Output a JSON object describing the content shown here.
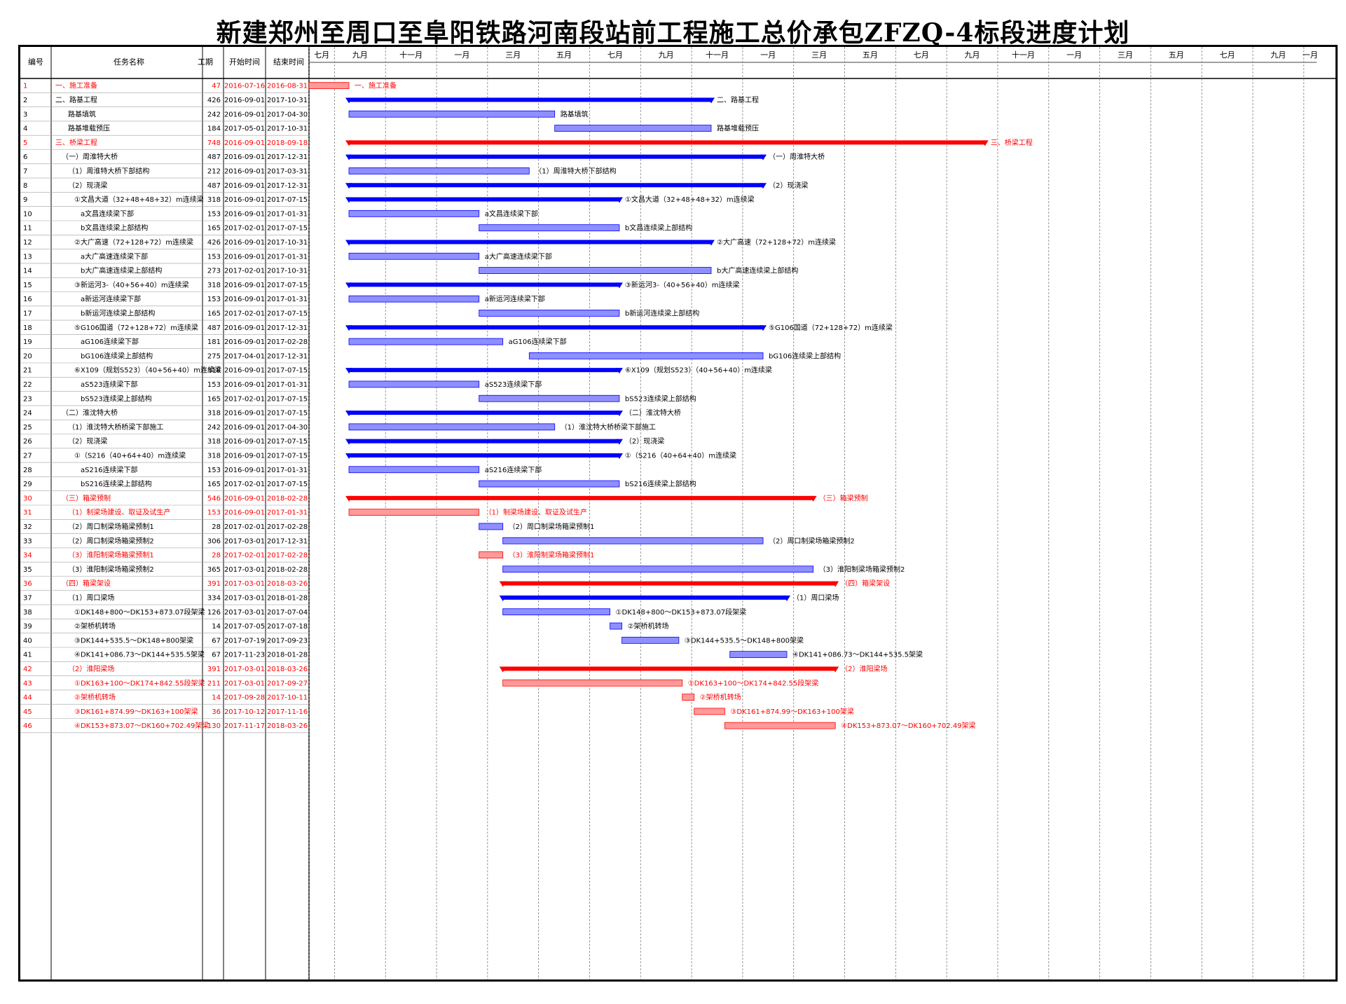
{
  "title": "新建郑州至周口至阜阳铁路河南段站前工程施工总价承包ZFZQ-4标段进度计划",
  "table_headers": {
    "id": "编号",
    "name": "任务名称",
    "duration": "工期",
    "start": "开始时间",
    "end": "结束时间"
  },
  "timeline": {
    "start": "2016-07-16",
    "end": "2019-10-14",
    "months": [
      {
        "label": "七月",
        "start": "2016-07-16",
        "end": "2016-08-15"
      },
      {
        "label": "九月",
        "start": "2016-08-15",
        "end": "2016-10-14"
      },
      {
        "label": "十一月",
        "start": "2016-10-14",
        "end": "2016-12-13"
      },
      {
        "label": "一月",
        "start": "2016-12-13",
        "end": "2017-02-11"
      },
      {
        "label": "三月",
        "start": "2017-02-11",
        "end": "2017-04-12"
      },
      {
        "label": "五月",
        "start": "2017-04-12",
        "end": "2017-06-11"
      },
      {
        "label": "七月",
        "start": "2017-06-11",
        "end": "2017-08-10"
      },
      {
        "label": "九月",
        "start": "2017-08-10",
        "end": "2017-10-09"
      },
      {
        "label": "十一月",
        "start": "2017-10-09",
        "end": "2017-12-08"
      },
      {
        "label": "一月",
        "start": "2017-12-08",
        "end": "2018-02-06"
      },
      {
        "label": "三月",
        "start": "2018-02-06",
        "end": "2018-04-07"
      },
      {
        "label": "五月",
        "start": "2018-04-07",
        "end": "2018-06-06"
      },
      {
        "label": "七月",
        "start": "2018-06-06",
        "end": "2018-08-05"
      },
      {
        "label": "九月",
        "start": "2018-08-05",
        "end": "2018-10-04"
      },
      {
        "label": "十一月",
        "start": "2018-10-04",
        "end": "2018-12-03"
      },
      {
        "label": "一月",
        "start": "2018-12-03",
        "end": "2019-02-01"
      },
      {
        "label": "三月",
        "start": "2019-02-01",
        "end": "2019-04-02"
      },
      {
        "label": "五月",
        "start": "2019-04-02",
        "end": "2019-06-01"
      },
      {
        "label": "七月",
        "start": "2019-06-01",
        "end": "2019-07-31"
      },
      {
        "label": "九月",
        "start": "2019-07-31",
        "end": "2019-09-29"
      },
      {
        "label": "一月",
        "start": "2019-09-29",
        "end": "2019-10-14"
      }
    ]
  },
  "chart_data": {
    "type": "gantt",
    "title": "新建郑州至周口至阜阳铁路河南段站前工程施工总价承包ZFZQ-4标段进度计划",
    "x_range": [
      "2016-07-16",
      "2019-10-14"
    ],
    "tasks": [
      {
        "id": "1",
        "name": "一、施工准备",
        "duration": "47",
        "start": "2016-07-16",
        "end": "2016-08-31",
        "kind": "critical",
        "summary": false,
        "indent": 0
      },
      {
        "id": "2",
        "name": "二、路基工程",
        "duration": "426",
        "start": "2016-09-01",
        "end": "2017-10-31",
        "kind": "normal",
        "summary": true,
        "indent": 0
      },
      {
        "id": "3",
        "name": "路基填筑",
        "duration": "242",
        "start": "2016-09-01",
        "end": "2017-04-30",
        "kind": "normal",
        "summary": false,
        "indent": 2
      },
      {
        "id": "4",
        "name": "路基堆载预压",
        "duration": "184",
        "start": "2017-05-01",
        "end": "2017-10-31",
        "kind": "normal",
        "summary": false,
        "indent": 2
      },
      {
        "id": "5",
        "name": "三、桥梁工程",
        "duration": "748",
        "start": "2016-09-01",
        "end": "2018-09-18",
        "kind": "critical",
        "summary": true,
        "indent": 0
      },
      {
        "id": "6",
        "name": "（一）周淮特大桥",
        "duration": "487",
        "start": "2016-09-01",
        "end": "2017-12-31",
        "kind": "normal",
        "summary": true,
        "indent": 1
      },
      {
        "id": "7",
        "name": "（1）周淮特大桥下部结构",
        "duration": "212",
        "start": "2016-09-01",
        "end": "2017-03-31",
        "kind": "normal",
        "summary": false,
        "indent": 2
      },
      {
        "id": "8",
        "name": "（2）现浇梁",
        "duration": "487",
        "start": "2016-09-01",
        "end": "2017-12-31",
        "kind": "normal",
        "summary": true,
        "indent": 2
      },
      {
        "id": "9",
        "name": "①文昌大道（32+48+48+32）m连续梁",
        "duration": "318",
        "start": "2016-09-01",
        "end": "2017-07-15",
        "kind": "normal",
        "summary": true,
        "indent": 3
      },
      {
        "id": "10",
        "name": "a文昌连续梁下部",
        "duration": "153",
        "start": "2016-09-01",
        "end": "2017-01-31",
        "kind": "normal",
        "summary": false,
        "indent": 4
      },
      {
        "id": "11",
        "name": "b文昌连续梁上部结构",
        "duration": "165",
        "start": "2017-02-01",
        "end": "2017-07-15",
        "kind": "normal",
        "summary": false,
        "indent": 4
      },
      {
        "id": "12",
        "name": "②大广高速（72+128+72）m连续梁",
        "duration": "426",
        "start": "2016-09-01",
        "end": "2017-10-31",
        "kind": "normal",
        "summary": true,
        "indent": 3
      },
      {
        "id": "13",
        "name": "a大广高速连续梁下部",
        "duration": "153",
        "start": "2016-09-01",
        "end": "2017-01-31",
        "kind": "normal",
        "summary": false,
        "indent": 4
      },
      {
        "id": "14",
        "name": "b大广高速连续梁上部结构",
        "duration": "273",
        "start": "2017-02-01",
        "end": "2017-10-31",
        "kind": "normal",
        "summary": false,
        "indent": 4
      },
      {
        "id": "15",
        "name": "③新运河3-（40+56+40）m连续梁",
        "duration": "318",
        "start": "2016-09-01",
        "end": "2017-07-15",
        "kind": "normal",
        "summary": true,
        "indent": 3
      },
      {
        "id": "16",
        "name": "a新运河连续梁下部",
        "duration": "153",
        "start": "2016-09-01",
        "end": "2017-01-31",
        "kind": "normal",
        "summary": false,
        "indent": 4
      },
      {
        "id": "17",
        "name": "b新运河连续梁上部结构",
        "duration": "165",
        "start": "2017-02-01",
        "end": "2017-07-15",
        "kind": "normal",
        "summary": false,
        "indent": 4
      },
      {
        "id": "18",
        "name": "⑤G106国道（72+128+72）m连续梁",
        "duration": "487",
        "start": "2016-09-01",
        "end": "2017-12-31",
        "kind": "normal",
        "summary": true,
        "indent": 3
      },
      {
        "id": "19",
        "name": "aG106连续梁下部",
        "duration": "181",
        "start": "2016-09-01",
        "end": "2017-02-28",
        "kind": "normal",
        "summary": false,
        "indent": 4
      },
      {
        "id": "20",
        "name": "bG106连续梁上部结构",
        "duration": "275",
        "start": "2017-04-01",
        "end": "2017-12-31",
        "kind": "normal",
        "summary": false,
        "indent": 4
      },
      {
        "id": "21",
        "name": "⑥X109（规划S523）（40+56+40）m连续梁",
        "duration": "318",
        "start": "2016-09-01",
        "end": "2017-07-15",
        "kind": "normal",
        "summary": true,
        "indent": 3
      },
      {
        "id": "22",
        "name": "aS523连续梁下部",
        "duration": "153",
        "start": "2016-09-01",
        "end": "2017-01-31",
        "kind": "normal",
        "summary": false,
        "indent": 4
      },
      {
        "id": "23",
        "name": "bS523连续梁上部结构",
        "duration": "165",
        "start": "2017-02-01",
        "end": "2017-07-15",
        "kind": "normal",
        "summary": false,
        "indent": 4
      },
      {
        "id": "24",
        "name": "（二）淮沈特大桥",
        "duration": "318",
        "start": "2016-09-01",
        "end": "2017-07-15",
        "kind": "normal",
        "summary": true,
        "indent": 1
      },
      {
        "id": "25",
        "name": "（1）淮沈特大桥桥梁下部施工",
        "duration": "242",
        "start": "2016-09-01",
        "end": "2017-04-30",
        "kind": "normal",
        "summary": false,
        "indent": 2
      },
      {
        "id": "26",
        "name": "（2）现浇梁",
        "duration": "318",
        "start": "2016-09-01",
        "end": "2017-07-15",
        "kind": "normal",
        "summary": true,
        "indent": 2
      },
      {
        "id": "27",
        "name": "①（S216（40+64+40）m连续梁",
        "duration": "318",
        "start": "2016-09-01",
        "end": "2017-07-15",
        "kind": "normal",
        "summary": true,
        "indent": 3
      },
      {
        "id": "28",
        "name": "aS216连续梁下部",
        "duration": "153",
        "start": "2016-09-01",
        "end": "2017-01-31",
        "kind": "normal",
        "summary": false,
        "indent": 4
      },
      {
        "id": "29",
        "name": "bS216连续梁上部结构",
        "duration": "165",
        "start": "2017-02-01",
        "end": "2017-07-15",
        "kind": "normal",
        "summary": false,
        "indent": 4
      },
      {
        "id": "30",
        "name": "（三）箱梁预制",
        "duration": "546",
        "start": "2016-09-01",
        "end": "2018-02-28",
        "kind": "critical",
        "summary": true,
        "indent": 1
      },
      {
        "id": "31",
        "name": "（1）制梁场建设、取证及试生产",
        "duration": "153",
        "start": "2016-09-01",
        "end": "2017-01-31",
        "kind": "critical",
        "summary": false,
        "indent": 2
      },
      {
        "id": "32",
        "name": "（2）周口制梁场箱梁预制1",
        "duration": "28",
        "start": "2017-02-01",
        "end": "2017-02-28",
        "kind": "normal",
        "summary": false,
        "indent": 2
      },
      {
        "id": "33",
        "name": "（2）周口制梁场箱梁预制2",
        "duration": "306",
        "start": "2017-03-01",
        "end": "2017-12-31",
        "kind": "normal",
        "summary": false,
        "indent": 2
      },
      {
        "id": "34",
        "name": "（3）淮阳制梁场箱梁预制1",
        "duration": "28",
        "start": "2017-02-01",
        "end": "2017-02-28",
        "kind": "critical",
        "summary": false,
        "indent": 2
      },
      {
        "id": "35",
        "name": "（3）淮阳制梁场箱梁预制2",
        "duration": "365",
        "start": "2017-03-01",
        "end": "2018-02-28",
        "kind": "normal",
        "summary": false,
        "indent": 2
      },
      {
        "id": "36",
        "name": "（四）箱梁架设",
        "duration": "391",
        "start": "2017-03-01",
        "end": "2018-03-26",
        "kind": "critical",
        "summary": true,
        "indent": 1
      },
      {
        "id": "37",
        "name": "（1）周口梁场",
        "duration": "334",
        "start": "2017-03-01",
        "end": "2018-01-28",
        "kind": "normal",
        "summary": true,
        "indent": 2
      },
      {
        "id": "38",
        "name": "①DK148+800～DK153+873.07段架梁",
        "duration": "126",
        "start": "2017-03-01",
        "end": "2017-07-04",
        "kind": "normal",
        "summary": false,
        "indent": 3
      },
      {
        "id": "39",
        "name": "②架桥机转场",
        "duration": "14",
        "start": "2017-07-05",
        "end": "2017-07-18",
        "kind": "normal",
        "summary": false,
        "indent": 3
      },
      {
        "id": "40",
        "name": "③DK144+535.5～DK148+800架梁",
        "duration": "67",
        "start": "2017-07-19",
        "end": "2017-09-23",
        "kind": "normal",
        "summary": false,
        "indent": 3
      },
      {
        "id": "41",
        "name": "④DK141+086.73～DK144+535.5架梁",
        "duration": "67",
        "start": "2017-11-23",
        "end": "2018-01-28",
        "kind": "normal",
        "summary": false,
        "indent": 3
      },
      {
        "id": "42",
        "name": "（2）淮阳梁场",
        "duration": "391",
        "start": "2017-03-01",
        "end": "2018-03-26",
        "kind": "critical",
        "summary": true,
        "indent": 2
      },
      {
        "id": "43",
        "name": "①DK163+100～DK174+842.55段架梁",
        "duration": "211",
        "start": "2017-03-01",
        "end": "2017-09-27",
        "kind": "critical",
        "summary": false,
        "indent": 3
      },
      {
        "id": "44",
        "name": "②架桥机转场",
        "duration": "14",
        "start": "2017-09-28",
        "end": "2017-10-11",
        "kind": "critical",
        "summary": false,
        "indent": 3
      },
      {
        "id": "45",
        "name": "③DK161+874.99～DK163+100架梁",
        "duration": "36",
        "start": "2017-10-12",
        "end": "2017-11-16",
        "kind": "critical",
        "summary": false,
        "indent": 3
      },
      {
        "id": "46",
        "name": "④DK153+873.07～DK160+702.49架梁",
        "duration": "130",
        "start": "2017-11-17",
        "end": "2018-03-26",
        "kind": "critical",
        "summary": false,
        "indent": 3
      }
    ]
  }
}
